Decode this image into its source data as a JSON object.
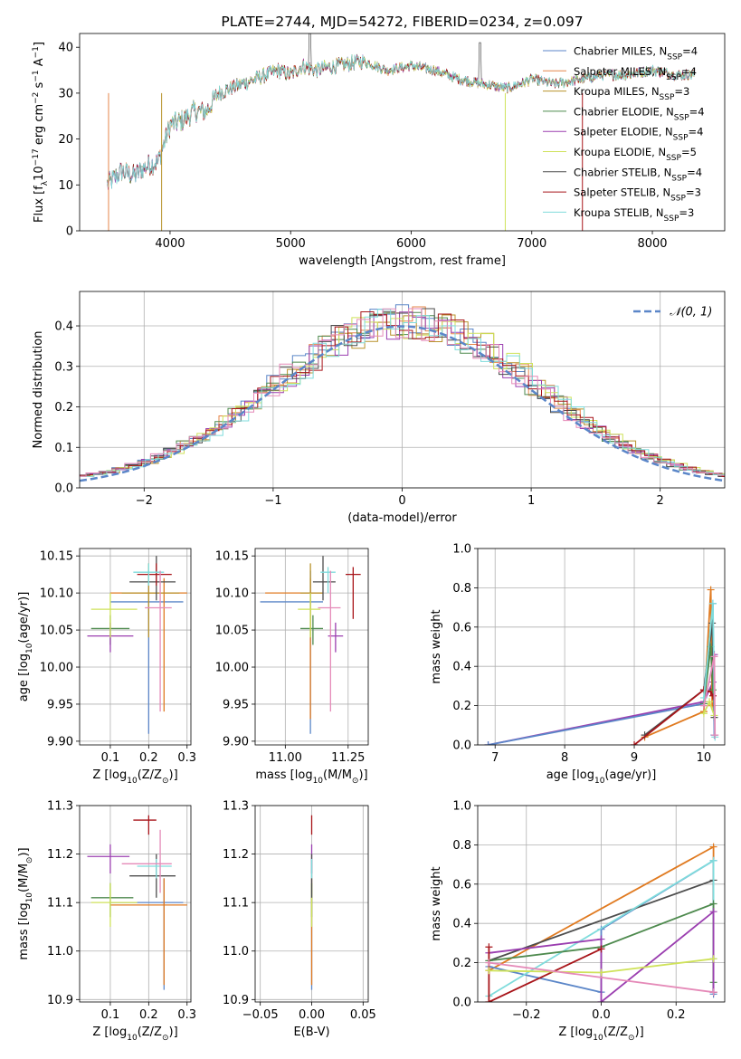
{
  "colors": {
    "chabrier_miles": "#5b86c8",
    "salpeter_miles": "#e5854a",
    "kroupa_miles": "#b8922b",
    "chabrier_elodie": "#4e8a4e",
    "salpeter_elodie": "#9b3fb0",
    "kroupa_elodie": "#cfe25a",
    "chabrier_stelib": "#4d4d4d",
    "salpeter_stelib": "#a8151a",
    "kroupa_stelib": "#7fdcdc",
    "pink": "#e58ab8",
    "orange": "#e07a20"
  },
  "chart_data": [
    {
      "id": "spectrum",
      "type": "line",
      "title": "PLATE=2744, MJD=54272, FIBERID=0234, z=0.097",
      "xlabel": "wavelength [Angstrom, rest frame]",
      "ylabel": "Flux [f",
      "ylabel_sub": "λ",
      "ylabel_mid": "10",
      "ylabel_sup1": "−17",
      "ylabel_tail": " erg cm",
      "ylabel_sup2": "−2",
      "ylabel_tail2": " s",
      "ylabel_sup3": "−1",
      "ylabel_tail3": " A",
      "ylabel_sup4": "−1",
      "ylabel_end": "]",
      "xlim": [
        3250,
        8600
      ],
      "ylim": [
        0,
        43
      ],
      "xticks": [
        4000,
        5000,
        6000,
        7000,
        8000
      ],
      "yticks": [
        0,
        10,
        20,
        30,
        40
      ],
      "profile_x": [
        3480,
        3600,
        3700,
        3800,
        3900,
        3950,
        4000,
        4100,
        4200,
        4300,
        4400,
        4500,
        4700,
        4900,
        5000,
        5100,
        5200,
        5400,
        5600,
        5800,
        6000,
        6200,
        6400,
        6600,
        6800,
        7000,
        7200,
        7400,
        7600,
        7800,
        8000,
        8200,
        8350
      ],
      "profile_y": [
        10,
        13,
        12,
        14,
        15,
        19,
        23,
        24,
        26,
        26,
        30,
        31,
        33,
        35,
        34,
        36,
        35,
        36,
        37,
        35,
        36,
        35,
        33,
        32,
        31,
        33,
        32,
        33,
        34,
        34,
        35,
        34,
        34
      ],
      "legend": [
        {
          "pre": "Chabrier MILES, N",
          "sub": "SSP",
          "post": "=4",
          "color_key": "chabrier_miles"
        },
        {
          "pre": "Salpeter MILES, N",
          "sub": "SSP",
          "post": "=4",
          "color_key": "salpeter_miles"
        },
        {
          "pre": "Kroupa MILES, N",
          "sub": "SSP",
          "post": "=3",
          "color_key": "kroupa_miles"
        },
        {
          "pre": "Chabrier ELODIE, N",
          "sub": "SSP",
          "post": "=4",
          "color_key": "chabrier_elodie"
        },
        {
          "pre": "Salpeter ELODIE, N",
          "sub": "SSP",
          "post": "=4",
          "color_key": "salpeter_elodie"
        },
        {
          "pre": "Kroupa ELODIE, N",
          "sub": "SSP",
          "post": "=5",
          "color_key": "kroupa_elodie"
        },
        {
          "pre": "Chabrier STELIB, N",
          "sub": "SSP",
          "post": "=4",
          "color_key": "chabrier_stelib"
        },
        {
          "pre": "Salpeter STELIB, N",
          "sub": "SSP",
          "post": "=3",
          "color_key": "salpeter_stelib"
        },
        {
          "pre": "Kroupa STELIB, N",
          "sub": "SSP",
          "post": "=3",
          "color_key": "kroupa_stelib"
        }
      ],
      "legend_position": "right"
    },
    {
      "id": "residuals",
      "type": "histogram",
      "xlabel": "(data-model)/error",
      "ylabel": "Normed distribution",
      "xlim": [
        -2.5,
        2.5
      ],
      "ylim": [
        0,
        0.485
      ],
      "xticks": [
        -2,
        -1,
        0,
        1,
        2
      ],
      "yticks": [
        0.0,
        0.1,
        0.2,
        0.3,
        0.4
      ],
      "grid": true,
      "bin_width": 0.1,
      "legend": [
        {
          "label": "𝒩(0, 1)",
          "style": "dashed",
          "color_key": "chabrier_miles"
        }
      ],
      "legend_position": "top-right"
    },
    {
      "id": "age_vs_Z",
      "type": "errorbar",
      "xlabel": "Z [log",
      "xlabel_sub": "10",
      "xlabel_tail": "(Z/Z",
      "xlabel_sub2": "⊙",
      "xlabel_end": ")]",
      "ylabel": "age  [log",
      "ylabel_sub": "10",
      "ylabel_tail": "(age/yr)]",
      "xlim": [
        0.02,
        0.31
      ],
      "ylim": [
        9.895,
        10.16
      ],
      "xticks": [
        0.1,
        0.2,
        0.3
      ],
      "yticks": [
        9.9,
        9.95,
        10.0,
        10.05,
        10.1,
        10.15
      ],
      "points": [
        {
          "x": 0.2,
          "xlo": 0.1,
          "xhi": 0.29,
          "y": 10.088,
          "ylo": 9.91,
          "yhi": 10.13,
          "color_key": "chabrier_miles"
        },
        {
          "x": 0.24,
          "xlo": 0.1,
          "xhi": 0.3,
          "y": 10.1,
          "ylo": 9.94,
          "yhi": 10.12,
          "color_key": "orange"
        },
        {
          "x": 0.2,
          "xlo": 0.13,
          "xhi": 0.28,
          "y": 10.1,
          "ylo": 10.04,
          "yhi": 10.14,
          "color_key": "kroupa_miles"
        },
        {
          "x": 0.1,
          "xlo": 0.05,
          "xhi": 0.15,
          "y": 10.052,
          "ylo": 10.03,
          "yhi": 10.07,
          "color_key": "chabrier_elodie"
        },
        {
          "x": 0.1,
          "xlo": 0.04,
          "xhi": 0.16,
          "y": 10.042,
          "ylo": 10.02,
          "yhi": 10.06,
          "color_key": "salpeter_elodie"
        },
        {
          "x": 0.1,
          "xlo": 0.05,
          "xhi": 0.17,
          "y": 10.078,
          "ylo": 10.04,
          "yhi": 10.1,
          "color_key": "kroupa_elodie"
        },
        {
          "x": 0.22,
          "xlo": 0.15,
          "xhi": 0.27,
          "y": 10.115,
          "ylo": 10.09,
          "yhi": 10.15,
          "color_key": "chabrier_stelib"
        },
        {
          "x": 0.22,
          "xlo": 0.17,
          "xhi": 0.26,
          "y": 10.125,
          "ylo": 10.11,
          "yhi": 10.14,
          "color_key": "salpeter_stelib"
        },
        {
          "x": 0.2,
          "xlo": 0.16,
          "xhi": 0.24,
          "y": 10.128,
          "ylo": 10.11,
          "yhi": 10.14,
          "color_key": "kroupa_stelib"
        },
        {
          "x": 0.23,
          "xlo": 0.19,
          "xhi": 0.26,
          "y": 10.08,
          "ylo": 9.94,
          "yhi": 10.13,
          "color_key": "pink"
        }
      ]
    },
    {
      "id": "age_vs_mass",
      "type": "errorbar",
      "xlabel": "mass [log",
      "xlabel_sub": "10",
      "xlabel_tail": "(M/M",
      "xlabel_sub2": "⊙",
      "xlabel_end": ")]",
      "ylim": [
        9.895,
        10.16
      ],
      "xlim": [
        10.88,
        11.33
      ],
      "xticks": [
        11.0,
        11.25
      ],
      "yticks": [
        9.9,
        9.95,
        10.0,
        10.05,
        10.1,
        10.15
      ],
      "points": [
        {
          "x": 11.1,
          "xlo": 10.9,
          "xhi": 11.15,
          "y": 10.088,
          "ylo": 9.91,
          "yhi": 10.13,
          "color_key": "chabrier_miles"
        },
        {
          "x": 11.1,
          "xlo": 10.92,
          "xhi": 11.15,
          "y": 10.1,
          "ylo": 9.93,
          "yhi": 10.12,
          "color_key": "orange"
        },
        {
          "x": 11.1,
          "xlo": 11.06,
          "xhi": 11.15,
          "y": 10.1,
          "ylo": 10.04,
          "yhi": 10.14,
          "color_key": "kroupa_miles"
        },
        {
          "x": 11.11,
          "xlo": 11.06,
          "xhi": 11.15,
          "y": 10.052,
          "ylo": 10.03,
          "yhi": 10.07,
          "color_key": "chabrier_elodie"
        },
        {
          "x": 11.2,
          "xlo": 11.17,
          "xhi": 11.23,
          "y": 10.042,
          "ylo": 10.02,
          "yhi": 10.06,
          "color_key": "salpeter_elodie"
        },
        {
          "x": 11.1,
          "xlo": 11.05,
          "xhi": 11.14,
          "y": 10.078,
          "ylo": 10.04,
          "yhi": 10.1,
          "color_key": "kroupa_elodie"
        },
        {
          "x": 11.15,
          "xlo": 11.11,
          "xhi": 11.2,
          "y": 10.115,
          "ylo": 10.09,
          "yhi": 10.15,
          "color_key": "chabrier_stelib"
        },
        {
          "x": 11.27,
          "xlo": 11.24,
          "xhi": 11.3,
          "y": 10.125,
          "ylo": 10.065,
          "yhi": 10.135,
          "color_key": "salpeter_stelib"
        },
        {
          "x": 11.17,
          "xlo": 11.14,
          "xhi": 11.2,
          "y": 10.128,
          "ylo": 10.1,
          "yhi": 10.135,
          "color_key": "kroupa_stelib"
        },
        {
          "x": 11.18,
          "xlo": 11.13,
          "xhi": 11.22,
          "y": 10.08,
          "ylo": 9.94,
          "yhi": 10.13,
          "color_key": "pink"
        }
      ]
    },
    {
      "id": "weight_vs_age",
      "type": "line",
      "xlabel": "age  [log",
      "xlabel_sub": "10",
      "xlabel_tail": "(age/yr)]",
      "ylabel": "mass weight",
      "xlim": [
        6.75,
        10.3
      ],
      "ylim": [
        0,
        1.0
      ],
      "xticks": [
        7,
        8,
        9,
        10
      ],
      "yticks": [
        0.0,
        0.2,
        0.4,
        0.6,
        0.8,
        1.0
      ],
      "series": [
        {
          "color_key": "salpeter_elodie",
          "x": [
            6.9,
            10.0,
            10.13,
            10.15
          ],
          "y": [
            0.0,
            0.22,
            0.32,
            0.46
          ]
        },
        {
          "color_key": "chabrier_miles",
          "x": [
            6.9,
            10.0,
            10.13,
            10.15
          ],
          "y": [
            0.0,
            0.21,
            0.72,
            0.05
          ]
        },
        {
          "color_key": "orange",
          "x": [
            9.15,
            10.0,
            10.1,
            10.12
          ],
          "y": [
            0.04,
            0.17,
            0.79,
            0.2
          ]
        },
        {
          "color_key": "chabrier_stelib",
          "x": [
            9.15,
            10.0,
            10.12,
            10.15
          ],
          "y": [
            0.05,
            0.28,
            0.62,
            0.14
          ]
        },
        {
          "color_key": "salpeter_stelib",
          "x": [
            9.0,
            10.0,
            10.1,
            10.13
          ],
          "y": [
            0.0,
            0.28,
            0.27,
            0.25
          ]
        },
        {
          "color_key": "chabrier_elodie",
          "x": [
            10.0,
            10.1,
            10.13
          ],
          "y": [
            0.21,
            0.5,
            0.28
          ]
        },
        {
          "color_key": "kroupa_elodie",
          "x": [
            10.0,
            10.08,
            10.15
          ],
          "y": [
            0.16,
            0.22,
            0.15
          ]
        },
        {
          "color_key": "kroupa_stelib",
          "x": [
            10.0,
            10.13,
            10.16
          ],
          "y": [
            0.24,
            0.72,
            0.04
          ]
        },
        {
          "color_key": "pink",
          "x": [
            10.0,
            10.15,
            10.16
          ],
          "y": [
            0.2,
            0.45,
            0.05
          ]
        }
      ]
    },
    {
      "id": "mass_vs_Z",
      "type": "errorbar",
      "xlabel": "Z [log",
      "xlabel_sub": "10",
      "xlabel_tail": "(Z/Z",
      "xlabel_sub2": "⊙",
      "xlabel_end": ")]",
      "ylabel": "mass [log",
      "ylabel_sub": "10",
      "ylabel_tail": "(M/M",
      "ylabel_sub2": "⊙",
      "ylabel_end": ")]",
      "xlim": [
        0.02,
        0.31
      ],
      "ylim": [
        10.895,
        11.3
      ],
      "xticks": [
        0.1,
        0.2,
        0.3
      ],
      "yticks": [
        10.9,
        11.0,
        11.1,
        11.2,
        11.3
      ],
      "points": [
        {
          "x": 0.24,
          "xlo": 0.1,
          "xhi": 0.29,
          "y": 11.1,
          "ylo": 10.92,
          "yhi": 11.15,
          "color_key": "chabrier_miles"
        },
        {
          "x": 0.24,
          "xlo": 0.1,
          "xhi": 0.3,
          "y": 11.095,
          "ylo": 10.93,
          "yhi": 11.15,
          "color_key": "orange"
        },
        {
          "x": 0.1,
          "xlo": 0.05,
          "xhi": 0.16,
          "y": 11.11,
          "ylo": 11.07,
          "yhi": 11.14,
          "color_key": "chabrier_elodie"
        },
        {
          "x": 0.1,
          "xlo": 0.04,
          "xhi": 0.15,
          "y": 11.195,
          "ylo": 11.16,
          "yhi": 11.22,
          "color_key": "salpeter_elodie"
        },
        {
          "x": 0.1,
          "xlo": 0.05,
          "xhi": 0.17,
          "y": 11.1,
          "ylo": 11.05,
          "yhi": 11.14,
          "color_key": "kroupa_elodie"
        },
        {
          "x": 0.22,
          "xlo": 0.15,
          "xhi": 0.27,
          "y": 11.155,
          "ylo": 11.11,
          "yhi": 11.2,
          "color_key": "chabrier_stelib"
        },
        {
          "x": 0.2,
          "xlo": 0.16,
          "xhi": 0.22,
          "y": 11.27,
          "ylo": 11.24,
          "yhi": 11.28,
          "color_key": "salpeter_stelib"
        },
        {
          "x": 0.22,
          "xlo": 0.17,
          "xhi": 0.26,
          "y": 11.175,
          "ylo": 11.15,
          "yhi": 11.19,
          "color_key": "kroupa_stelib"
        },
        {
          "x": 0.23,
          "xlo": 0.13,
          "xhi": 0.26,
          "y": 11.18,
          "ylo": 11.12,
          "yhi": 11.25,
          "color_key": "pink"
        }
      ]
    },
    {
      "id": "mass_vs_EBV",
      "type": "errorbar",
      "xlabel": "E(B-V)",
      "xlim": [
        -0.055,
        0.055
      ],
      "ylim": [
        10.895,
        11.3
      ],
      "xticks": [
        -0.05,
        0.0,
        0.05
      ],
      "xtick_labels": [
        "−0.05",
        "0.00",
        "0.05"
      ],
      "yticks": [
        10.9,
        11.0,
        11.1,
        11.2,
        11.3
      ],
      "points": [
        {
          "x": 0.0,
          "y": 11.1,
          "ylo": 10.92,
          "yhi": 11.15,
          "color_key": "chabrier_miles"
        },
        {
          "x": 0.0,
          "y": 11.095,
          "ylo": 10.93,
          "yhi": 11.15,
          "color_key": "orange"
        },
        {
          "x": 0.0,
          "y": 11.11,
          "ylo": 11.07,
          "yhi": 11.14,
          "color_key": "chabrier_elodie"
        },
        {
          "x": 0.0,
          "y": 11.195,
          "ylo": 11.16,
          "yhi": 11.22,
          "color_key": "salpeter_elodie"
        },
        {
          "x": 0.0,
          "y": 11.1,
          "ylo": 11.05,
          "yhi": 11.14,
          "color_key": "kroupa_elodie"
        },
        {
          "x": 0.0,
          "y": 11.155,
          "ylo": 11.11,
          "yhi": 11.2,
          "color_key": "chabrier_stelib"
        },
        {
          "x": 0.0,
          "y": 11.27,
          "ylo": 11.24,
          "yhi": 11.28,
          "color_key": "salpeter_stelib"
        },
        {
          "x": 0.0,
          "y": 11.175,
          "ylo": 11.15,
          "yhi": 11.19,
          "color_key": "kroupa_stelib"
        }
      ]
    },
    {
      "id": "weight_vs_Z",
      "type": "line",
      "xlabel": "Z [log",
      "xlabel_sub": "10",
      "xlabel_tail": "(Z/Z",
      "xlabel_sub2": "⊙",
      "xlabel_end": ")]",
      "ylabel": "mass weight",
      "xlim": [
        -0.33,
        0.33
      ],
      "ylim": [
        0,
        1.0
      ],
      "xticks": [
        -0.2,
        0.0,
        0.2
      ],
      "xtick_labels": [
        "−0.2",
        "0.0",
        "0.2"
      ],
      "yticks": [
        0.0,
        0.2,
        0.4,
        0.6,
        0.8,
        1.0
      ],
      "series": [
        {
          "color_key": "orange",
          "x": [
            -0.3,
            0.3,
            0.3
          ],
          "y": [
            0.16,
            0.79,
            0.05
          ]
        },
        {
          "color_key": "chabrier_miles",
          "x": [
            -0.3,
            0.0,
            0.0,
            0.3,
            0.3
          ],
          "y": [
            0.18,
            0.05,
            0.37,
            0.72,
            0.04
          ]
        },
        {
          "color_key": "chabrier_stelib",
          "x": [
            -0.3,
            0.3,
            0.3
          ],
          "y": [
            0.21,
            0.62,
            0.05
          ]
        },
        {
          "color_key": "kroupa_stelib",
          "x": [
            -0.3,
            0.3,
            0.3
          ],
          "y": [
            0.03,
            0.72,
            0.22
          ]
        },
        {
          "color_key": "chabrier_elodie",
          "x": [
            -0.3,
            0.0,
            0.3,
            0.3
          ],
          "y": [
            0.21,
            0.28,
            0.5,
            0.1
          ]
        },
        {
          "color_key": "salpeter_elodie",
          "x": [
            -0.3,
            0.0,
            0.0,
            0.3,
            0.3
          ],
          "y": [
            0.25,
            0.32,
            0.0,
            0.46,
            0.05
          ]
        },
        {
          "color_key": "salpeter_stelib",
          "x": [
            -0.3,
            -0.3,
            0.0
          ],
          "y": [
            0.28,
            0.0,
            0.27
          ]
        },
        {
          "color_key": "kroupa_elodie",
          "x": [
            -0.3,
            0.0,
            0.3
          ],
          "y": [
            0.16,
            0.15,
            0.22
          ]
        },
        {
          "color_key": "pink",
          "x": [
            -0.3,
            0.3
          ],
          "y": [
            0.2,
            0.05
          ]
        }
      ]
    }
  ]
}
